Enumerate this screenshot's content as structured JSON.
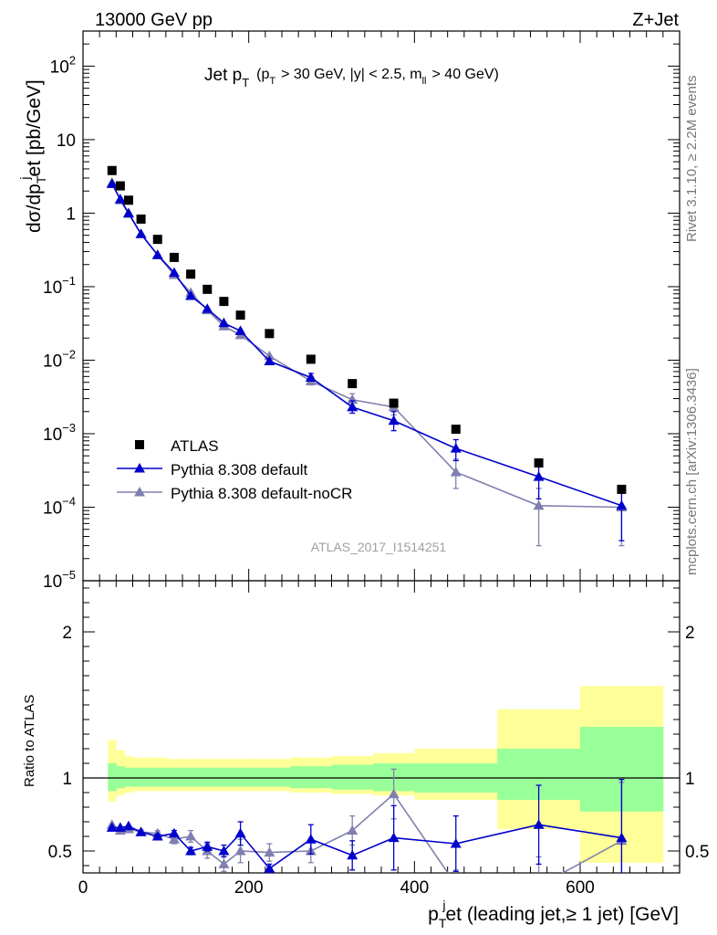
{
  "header": {
    "left": "13000 GeV pp",
    "right": "Z+Jet"
  },
  "side_labels": {
    "rivet": "Rivet 3.1.10, ≥ 2.2M events",
    "mcplots": "mcplots.cern.ch [arXiv:1306.3436]"
  },
  "chart_data": [
    {
      "type": "scatter",
      "panel": "main",
      "title_main": "Jet p",
      "title_main_sub": "T",
      "title_cut": "(p",
      "title_cut_sub": "T",
      "title_cut_rest": "> 30 GeV, |y| < 2.5, m",
      "title_cut_sub2": "ll",
      "title_cut_end": "> 40 GeV)",
      "watermark": "ATLAS_2017_I1514251",
      "ylabel": "dσ/dp",
      "ylabel_sub": "T",
      "ylabel_sup": "j",
      "ylabel_rest": "et [pb/GeV]",
      "yscale": "log",
      "xlim": [
        0,
        720
      ],
      "ylim": [
        1e-05,
        300
      ],
      "y_ticks": [
        {
          "v": 1e-05,
          "base": "10",
          "exp": "−5"
        },
        {
          "v": 0.0001,
          "base": "10",
          "exp": "−4"
        },
        {
          "v": 0.001,
          "base": "10",
          "exp": "−3"
        },
        {
          "v": 0.01,
          "base": "10",
          "exp": "−2"
        },
        {
          "v": 0.1,
          "base": "10",
          "exp": "−1"
        },
        {
          "v": 1,
          "base": "1",
          "exp": ""
        },
        {
          "v": 10,
          "base": "10",
          "exp": ""
        },
        {
          "v": 100,
          "base": "10",
          "exp": "2"
        }
      ],
      "legend": [
        "ATLAS",
        "Pythia 8.308 default",
        "Pythia 8.308 default-noCR"
      ],
      "legend_position": "bottom-left",
      "series": [
        {
          "name": "ATLAS",
          "color": "#000000",
          "marker": "square",
          "x": [
            35,
            45,
            55,
            70,
            90,
            110,
            130,
            150,
            170,
            190,
            225,
            275,
            325,
            375,
            450,
            550,
            650
          ],
          "y": [
            3.8,
            2.35,
            1.5,
            0.83,
            0.44,
            0.25,
            0.148,
            0.092,
            0.063,
            0.041,
            0.023,
            0.0103,
            0.0048,
            0.0026,
            0.00115,
            0.0004,
            0.000175
          ]
        },
        {
          "name": "Pythia 8.308 default",
          "color": "#0000cc",
          "marker": "triangle",
          "x": [
            35,
            45,
            55,
            70,
            90,
            110,
            130,
            150,
            170,
            190,
            225,
            275,
            325,
            375,
            450,
            550,
            650
          ],
          "y": [
            2.5,
            1.55,
            1.0,
            0.52,
            0.27,
            0.155,
            0.075,
            0.05,
            0.032,
            0.025,
            0.0097,
            0.0058,
            0.0023,
            0.0015,
            0.00063,
            0.00026,
            0.000105
          ],
          "yerr_lo": [
            0,
            0,
            0,
            0,
            0,
            0,
            0,
            0,
            0,
            0,
            0,
            0.0006,
            0.0004,
            0.0004,
            0.0002,
            0.00013,
            7e-05
          ],
          "yerr_hi": [
            0,
            0,
            0,
            0,
            0,
            0,
            0,
            0,
            0,
            0,
            0,
            0.0008,
            0.0005,
            0.0005,
            0.0002,
            0.00013,
            7e-05
          ]
        },
        {
          "name": "Pythia 8.308 default-noCR",
          "color": "#8080b0",
          "marker": "triangle",
          "x": [
            35,
            45,
            55,
            70,
            90,
            110,
            130,
            150,
            170,
            190,
            225,
            275,
            325,
            375,
            450,
            550,
            650
          ],
          "y": [
            2.6,
            1.5,
            0.98,
            0.52,
            0.27,
            0.145,
            0.083,
            0.048,
            0.029,
            0.022,
            0.0114,
            0.0052,
            0.0029,
            0.0023,
            0.0003,
            0.000105,
            0.0001
          ],
          "yerr_lo": [
            0,
            0,
            0,
            0,
            0,
            0,
            0,
            0,
            0,
            0,
            0,
            0.0006,
            0.0005,
            0.0005,
            0.00012,
            7.5e-05,
            7e-05
          ],
          "yerr_hi": [
            0,
            0,
            0,
            0,
            0,
            0,
            0,
            0,
            0,
            0,
            0,
            0.0008,
            0.0006,
            0.0006,
            0.00015,
            7.5e-05,
            8e-05
          ]
        }
      ]
    },
    {
      "type": "line",
      "panel": "ratio",
      "ylabel": "Ratio to ATLAS",
      "xlabel": "p",
      "xlabel_sub": "T",
      "xlabel_sup": "j",
      "xlabel_rest": "et (leading jet,≥ 1 jet) [GeV]",
      "xlim": [
        0,
        720
      ],
      "ylim": [
        0.35,
        2.35
      ],
      "x_ticks": [
        0,
        200,
        400,
        600
      ],
      "y_ticks": [
        0.5,
        1,
        2
      ],
      "reference_line": 1,
      "bands": {
        "edges": [
          30,
          40,
          50,
          60,
          80,
          100,
          120,
          140,
          160,
          180,
          200,
          250,
          300,
          350,
          400,
          500,
          600,
          700
        ],
        "inner": [
          [
            0.91,
            1.1
          ],
          [
            0.93,
            1.08
          ],
          [
            0.94,
            1.07
          ],
          [
            0.94,
            1.07
          ],
          [
            0.94,
            1.07
          ],
          [
            0.94,
            1.07
          ],
          [
            0.94,
            1.07
          ],
          [
            0.94,
            1.07
          ],
          [
            0.94,
            1.07
          ],
          [
            0.94,
            1.07
          ],
          [
            0.94,
            1.07
          ],
          [
            0.93,
            1.08
          ],
          [
            0.92,
            1.09
          ],
          [
            0.91,
            1.1
          ],
          [
            0.9,
            1.1
          ],
          [
            0.85,
            1.2
          ],
          [
            0.77,
            1.35
          ]
        ],
        "outer": [
          [
            0.84,
            1.26
          ],
          [
            0.88,
            1.19
          ],
          [
            0.9,
            1.15
          ],
          [
            0.91,
            1.14
          ],
          [
            0.91,
            1.14
          ],
          [
            0.91,
            1.13
          ],
          [
            0.91,
            1.13
          ],
          [
            0.91,
            1.13
          ],
          [
            0.91,
            1.13
          ],
          [
            0.91,
            1.13
          ],
          [
            0.91,
            1.13
          ],
          [
            0.9,
            1.14
          ],
          [
            0.89,
            1.15
          ],
          [
            0.88,
            1.17
          ],
          [
            0.85,
            1.2
          ],
          [
            0.65,
            1.47
          ],
          [
            0.42,
            1.63
          ]
        ],
        "inner_color": "#99ff99",
        "outer_color": "#ffff99"
      },
      "series": [
        {
          "name": "Pythia 8.308 default",
          "color": "#0000cc",
          "x": [
            35,
            45,
            55,
            70,
            90,
            110,
            130,
            150,
            170,
            190,
            225,
            275,
            325,
            375,
            450,
            550,
            650
          ],
          "y": [
            0.66,
            0.66,
            0.67,
            0.63,
            0.6,
            0.62,
            0.5,
            0.53,
            0.5,
            0.62,
            0.38,
            0.58,
            0.47,
            0.59,
            0.55,
            0.68,
            0.59
          ],
          "yerr": [
            0.01,
            0.01,
            0.01,
            0.01,
            0.015,
            0.02,
            0.025,
            0.03,
            0.04,
            0.08,
            0.03,
            0.1,
            0.1,
            0.22,
            0.19,
            0.27,
            0.4
          ]
        },
        {
          "name": "Pythia 8.308 default-noCR",
          "color": "#8080b0",
          "x": [
            35,
            45,
            55,
            70,
            90,
            110,
            130,
            150,
            170,
            190,
            225,
            275,
            325,
            375,
            450,
            550,
            650
          ],
          "y": [
            0.68,
            0.64,
            0.65,
            0.63,
            0.62,
            0.58,
            0.6,
            0.5,
            0.41,
            0.5,
            0.49,
            0.5,
            0.64,
            0.89,
            0.27,
            0.26,
            0.57
          ],
          "yerr": [
            0.01,
            0.01,
            0.01,
            0.015,
            0.02,
            0.03,
            0.04,
            0.05,
            0.05,
            0.08,
            0.06,
            0.08,
            0.1,
            0.17,
            0.1,
            0.2,
            0.4
          ]
        }
      ]
    }
  ]
}
